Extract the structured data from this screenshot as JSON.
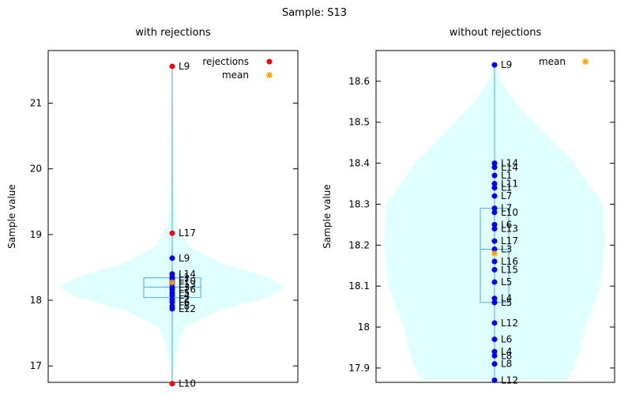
{
  "figure_title": "Sample: S13",
  "colors": {
    "violin_fill": "#e0ffff",
    "box_stroke": "#4aa8e0",
    "points": "#0000ff",
    "rejections": "#ff0000",
    "mean": "#ffa500",
    "axes": "#000000"
  },
  "chart_data": [
    {
      "type": "violin",
      "title": "with rejections",
      "ylabel": "Sample value",
      "xlabel": "",
      "ylim": [
        16.75,
        21.8
      ],
      "yticks": [
        17,
        18,
        19,
        20,
        21
      ],
      "legend": {
        "placement": "top-right",
        "entries": [
          "rejections",
          "mean"
        ]
      },
      "violin_profile": [
        {
          "y": 16.73,
          "w": 0.0
        },
        {
          "y": 17.0,
          "w": 0.02
        },
        {
          "y": 17.3,
          "w": 0.05
        },
        {
          "y": 17.6,
          "w": 0.12
        },
        {
          "y": 17.85,
          "w": 0.42
        },
        {
          "y": 18.05,
          "w": 0.85
        },
        {
          "y": 18.2,
          "w": 1.0
        },
        {
          "y": 18.35,
          "w": 0.85
        },
        {
          "y": 18.55,
          "w": 0.45
        },
        {
          "y": 18.8,
          "w": 0.16
        },
        {
          "y": 19.1,
          "w": 0.05
        },
        {
          "y": 19.4,
          "w": 0.02
        },
        {
          "y": 21.56,
          "w": 0.0
        }
      ],
      "box": {
        "q1": 18.04,
        "median": 18.2,
        "q3": 18.34,
        "whisker_low": 16.73,
        "whisker_high": 21.56
      },
      "mean": 18.27,
      "points": [
        {
          "label": "L9",
          "value": 21.56,
          "rejected": true
        },
        {
          "label": "L17",
          "value": 19.02,
          "rejected": true
        },
        {
          "label": "L9",
          "value": 18.64,
          "rejected": false
        },
        {
          "label": "L14",
          "value": 18.4,
          "rejected": false
        },
        {
          "label": "L1",
          "value": 18.35,
          "rejected": false
        },
        {
          "label": "L7",
          "value": 18.32,
          "rejected": false
        },
        {
          "label": "L10",
          "value": 18.29,
          "rejected": false
        },
        {
          "label": "L13",
          "value": 18.24,
          "rejected": false
        },
        {
          "label": "L3",
          "value": 18.19,
          "rejected": false
        },
        {
          "label": "L16",
          "value": 18.16,
          "rejected": false
        },
        {
          "label": "L5",
          "value": 18.11,
          "rejected": false
        },
        {
          "label": "L4",
          "value": 18.07,
          "rejected": false
        },
        {
          "label": "L2",
          "value": 18.01,
          "rejected": false
        },
        {
          "label": "L6",
          "value": 17.97,
          "rejected": false
        },
        {
          "label": "L8",
          "value": 17.91,
          "rejected": false
        },
        {
          "label": "L12",
          "value": 17.87,
          "rejected": false
        },
        {
          "label": "L10",
          "value": 16.73,
          "rejected": true
        }
      ]
    },
    {
      "type": "violin",
      "title": "without rejections",
      "ylabel": "Sample value",
      "xlabel": "",
      "ylim": [
        17.865,
        18.675
      ],
      "yticks": [
        17.9,
        18,
        18.1,
        18.2,
        18.3,
        18.4,
        18.5,
        18.6
      ],
      "legend": {
        "placement": "top-right",
        "entries": [
          "mean"
        ]
      },
      "violin_profile": [
        {
          "y": 17.87,
          "w": 0.65
        },
        {
          "y": 17.9,
          "w": 0.72
        },
        {
          "y": 17.95,
          "w": 0.78
        },
        {
          "y": 18.0,
          "w": 0.82
        },
        {
          "y": 18.1,
          "w": 0.96
        },
        {
          "y": 18.2,
          "w": 1.0
        },
        {
          "y": 18.3,
          "w": 0.98
        },
        {
          "y": 18.4,
          "w": 0.72
        },
        {
          "y": 18.5,
          "w": 0.36
        },
        {
          "y": 18.55,
          "w": 0.18
        },
        {
          "y": 18.6,
          "w": 0.06
        },
        {
          "y": 18.64,
          "w": 0.0
        }
      ],
      "box": {
        "q1": 18.06,
        "median": 18.19,
        "q3": 18.29,
        "whisker_low": 17.87,
        "whisker_high": 18.64
      },
      "mean": 18.18,
      "points": [
        {
          "label": "L9",
          "value": 18.64
        },
        {
          "label": "L14",
          "value": 18.4
        },
        {
          "label": "L14",
          "value": 18.39
        },
        {
          "label": "L1",
          "value": 18.37
        },
        {
          "label": "L11",
          "value": 18.35
        },
        {
          "label": "L1",
          "value": 18.34
        },
        {
          "label": "L7",
          "value": 18.32
        },
        {
          "label": "L7",
          "value": 18.29
        },
        {
          "label": "L10",
          "value": 18.28
        },
        {
          "label": "L6",
          "value": 18.25
        },
        {
          "label": "L13",
          "value": 18.24
        },
        {
          "label": "L17",
          "value": 18.21
        },
        {
          "label": "L3",
          "value": 18.19
        },
        {
          "label": "L16",
          "value": 18.16
        },
        {
          "label": "L15",
          "value": 18.14
        },
        {
          "label": "L5",
          "value": 18.11
        },
        {
          "label": "L4",
          "value": 18.07
        },
        {
          "label": "L5",
          "value": 18.06
        },
        {
          "label": "L12",
          "value": 18.01
        },
        {
          "label": "L6",
          "value": 17.97
        },
        {
          "label": "L4",
          "value": 17.94
        },
        {
          "label": "L8",
          "value": 17.93
        },
        {
          "label": "L8",
          "value": 17.91
        },
        {
          "label": "L12",
          "value": 17.87
        }
      ]
    }
  ]
}
